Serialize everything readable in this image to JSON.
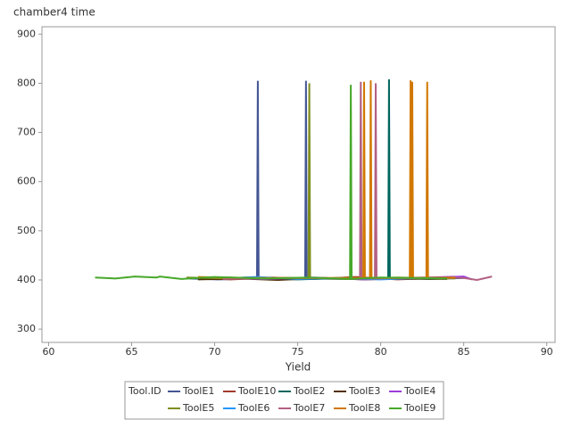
{
  "chart_data": {
    "type": "line",
    "title": "chamber4 time",
    "x_label": "Yield",
    "legend_title": "Tool.ID",
    "xlim": [
      59.6,
      90.5
    ],
    "xticks": [
      60,
      65,
      70,
      75,
      80,
      85,
      90
    ],
    "ylim": [
      273,
      915
    ],
    "yticks": [
      300,
      400,
      500,
      600,
      700,
      800,
      900
    ],
    "series": [
      {
        "name": "ToolE1",
        "color": "#445694",
        "x": [
          68.5,
          70.2,
          72.55,
          72.6,
          72.65,
          74,
          75.45,
          75.5,
          75.55,
          77.5,
          80
        ],
        "values": [
          403,
          401,
          403,
          805,
          403,
          404,
          403,
          805,
          403,
          402,
          404
        ]
      },
      {
        "name": "ToolE10",
        "color": "#A23A2E",
        "x": [
          68.8,
          71,
          73.5,
          76,
          78.5,
          81,
          83.5
        ],
        "values": [
          404,
          401,
          405,
          402,
          406,
          401,
          404
        ]
      },
      {
        "name": "ToolE2",
        "color": "#01665E",
        "x": [
          69.5,
          72,
          75,
          78,
          80.45,
          80.5,
          80.55,
          83,
          85
        ],
        "values": [
          402,
          405,
          401,
          404,
          403,
          808,
          403,
          402,
          404
        ]
      },
      {
        "name": "ToolE3",
        "color": "#543005",
        "x": [
          69,
          71.5,
          73.8,
          76.5,
          79,
          82,
          84
        ],
        "values": [
          401,
          403,
          400,
          404,
          401,
          403,
          402
        ]
      },
      {
        "name": "ToolE4",
        "color": "#9D3CDB",
        "x": [
          70,
          73,
          76,
          79,
          82,
          85,
          85.5
        ],
        "values": [
          404,
          402,
          405,
          401,
          404,
          407,
          401
        ]
      },
      {
        "name": "ToolE5",
        "color": "#7F8E1F",
        "x": [
          68.3,
          71,
          74,
          75.65,
          75.7,
          75.75,
          78,
          81,
          84.5
        ],
        "values": [
          405,
          403,
          404,
          404,
          800,
          404,
          402,
          405,
          403
        ]
      },
      {
        "name": "ToolE6",
        "color": "#2597FA",
        "x": [
          70.5,
          72.5,
          75,
          77.5,
          80,
          83
        ],
        "values": [
          403,
          406,
          402,
          404,
          401,
          405
        ]
      },
      {
        "name": "ToolE7",
        "color": "#B26084",
        "x": [
          70.5,
          74,
          78.75,
          78.8,
          78.85,
          79.65,
          79.7,
          79.75,
          82.5,
          85,
          85.8,
          86.7
        ],
        "values": [
          402,
          404,
          403,
          803,
          403,
          403,
          800,
          403,
          405,
          404,
          400,
          407
        ]
      },
      {
        "name": "ToolE8",
        "color": "#D17800",
        "x": [
          69,
          72,
          78.95,
          79,
          79.05,
          79.35,
          79.4,
          79.45,
          81.75,
          81.8,
          81.85,
          81.9,
          81.95,
          82.75,
          82.8,
          82.85,
          84.5
        ],
        "values": [
          406,
          404,
          404,
          803,
          404,
          404,
          806,
          404,
          404,
          806,
          404,
          803,
          404,
          404,
          803,
          404,
          405
        ]
      },
      {
        "name": "ToolE9",
        "color": "#47A82A",
        "x": [
          62.8,
          64,
          65.2,
          66.5,
          66.7,
          68,
          70,
          73,
          75.6,
          78.15,
          78.2,
          78.25,
          80,
          82,
          84
        ],
        "values": [
          405,
          403,
          407,
          405,
          407,
          402,
          406,
          403,
          405,
          402,
          797,
          402,
          405,
          404,
          403
        ]
      }
    ]
  }
}
